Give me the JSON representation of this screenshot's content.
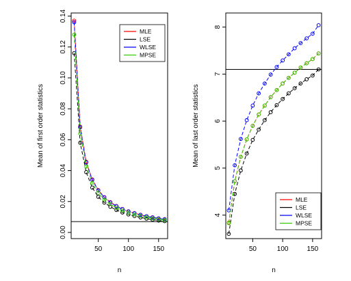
{
  "chart_data": [
    {
      "type": "line",
      "xlabel": "n",
      "ylabel": "Mean of first order statistics",
      "xlim": [
        5,
        165
      ],
      "ylim": [
        -0.004,
        0.142
      ],
      "xticks": [
        50,
        100,
        150
      ],
      "yticks": [
        0.0,
        0.02,
        0.04,
        0.06,
        0.08,
        0.1,
        0.12,
        0.14
      ],
      "ytick_labels": [
        "0.00",
        "0.02",
        "0.04",
        "0.06",
        "0.08",
        "0.10",
        "0.12",
        "0.14"
      ],
      "hline": 0.007,
      "legend": {
        "position": "top-right",
        "entries": [
          "MLE",
          "LSE",
          "WLSE",
          "MPSE"
        ]
      },
      "series": [
        {
          "name": "MLE",
          "color": "#ff0000",
          "x": [
            10,
            20,
            30,
            40,
            50,
            60,
            70,
            80,
            90,
            100,
            110,
            120,
            130,
            140,
            150,
            160
          ],
          "y": [
            0.137,
            0.0685,
            0.0457,
            0.0343,
            0.0274,
            0.0228,
            0.0196,
            0.0171,
            0.0152,
            0.0137,
            0.0125,
            0.0114,
            0.0105,
            0.0098,
            0.0091,
            0.0086
          ]
        },
        {
          "name": "LSE",
          "color": "#000000",
          "x": [
            10,
            20,
            30,
            40,
            50,
            60,
            70,
            80,
            90,
            100,
            110,
            120,
            130,
            140,
            150,
            160
          ],
          "y": [
            0.116,
            0.058,
            0.039,
            0.029,
            0.023,
            0.0193,
            0.0166,
            0.0145,
            0.0129,
            0.0116,
            0.0106,
            0.0097,
            0.0089,
            0.0083,
            0.0077,
            0.0073
          ]
        },
        {
          "name": "WLSE",
          "color": "#0000ff",
          "x": [
            10,
            20,
            30,
            40,
            50,
            60,
            70,
            80,
            90,
            100,
            110,
            120,
            130,
            140,
            150,
            160
          ],
          "y": [
            0.136,
            0.068,
            0.0453,
            0.034,
            0.0272,
            0.0227,
            0.0194,
            0.017,
            0.0151,
            0.0136,
            0.0124,
            0.0113,
            0.0105,
            0.0097,
            0.0091,
            0.0085
          ]
        },
        {
          "name": "MPSE",
          "color": "#33cc00",
          "x": [
            10,
            20,
            30,
            40,
            50,
            60,
            70,
            80,
            90,
            100,
            110,
            120,
            130,
            140,
            150,
            160
          ],
          "y": [
            0.128,
            0.064,
            0.0427,
            0.032,
            0.0256,
            0.0213,
            0.0183,
            0.016,
            0.0142,
            0.0128,
            0.0116,
            0.0107,
            0.0098,
            0.0091,
            0.0085,
            0.008
          ]
        }
      ]
    },
    {
      "type": "line",
      "xlabel": "n",
      "ylabel": "Mean of last order statistics",
      "xlim": [
        5,
        165
      ],
      "ylim": [
        3.5,
        8.3
      ],
      "xticks": [
        50,
        100,
        150
      ],
      "yticks": [
        4,
        5,
        6,
        7,
        8
      ],
      "ytick_labels": [
        "4",
        "5",
        "6",
        "7",
        "8"
      ],
      "hline": 7.1,
      "legend": {
        "position": "bottom-right",
        "entries": [
          "MLE",
          "LSE",
          "WLSE",
          "MPSE"
        ]
      },
      "series": [
        {
          "name": "MLE",
          "color": "#ff0000",
          "x": [
            10,
            20,
            30,
            40,
            50,
            60,
            70,
            80,
            90,
            100,
            110,
            120,
            130,
            140,
            150,
            160
          ],
          "y": [
            3.84,
            4.72,
            5.24,
            5.61,
            5.9,
            6.14,
            6.33,
            6.51,
            6.66,
            6.8,
            6.92,
            7.03,
            7.14,
            7.23,
            7.32,
            7.44
          ]
        },
        {
          "name": "LSE",
          "color": "#000000",
          "x": [
            10,
            20,
            30,
            40,
            50,
            60,
            70,
            80,
            90,
            100,
            110,
            120,
            130,
            140,
            150,
            160
          ],
          "y": [
            3.6,
            4.45,
            4.95,
            5.31,
            5.6,
            5.82,
            6.02,
            6.19,
            6.34,
            6.47,
            6.59,
            6.7,
            6.8,
            6.89,
            6.97,
            7.1
          ]
        },
        {
          "name": "WLSE",
          "color": "#0000ff",
          "x": [
            10,
            20,
            30,
            40,
            50,
            60,
            70,
            80,
            90,
            100,
            110,
            120,
            130,
            140,
            150,
            160
          ],
          "y": [
            4.1,
            5.06,
            5.62,
            6.02,
            6.33,
            6.59,
            6.8,
            6.99,
            7.15,
            7.29,
            7.42,
            7.55,
            7.66,
            7.76,
            7.86,
            8.04
          ]
        },
        {
          "name": "MPSE",
          "color": "#33cc00",
          "x": [
            10,
            20,
            30,
            40,
            50,
            60,
            70,
            80,
            90,
            100,
            110,
            120,
            130,
            140,
            150,
            160
          ],
          "y": [
            3.83,
            4.72,
            5.24,
            5.61,
            5.9,
            6.14,
            6.33,
            6.51,
            6.66,
            6.8,
            6.92,
            7.03,
            7.14,
            7.23,
            7.32,
            7.44
          ]
        }
      ]
    }
  ]
}
